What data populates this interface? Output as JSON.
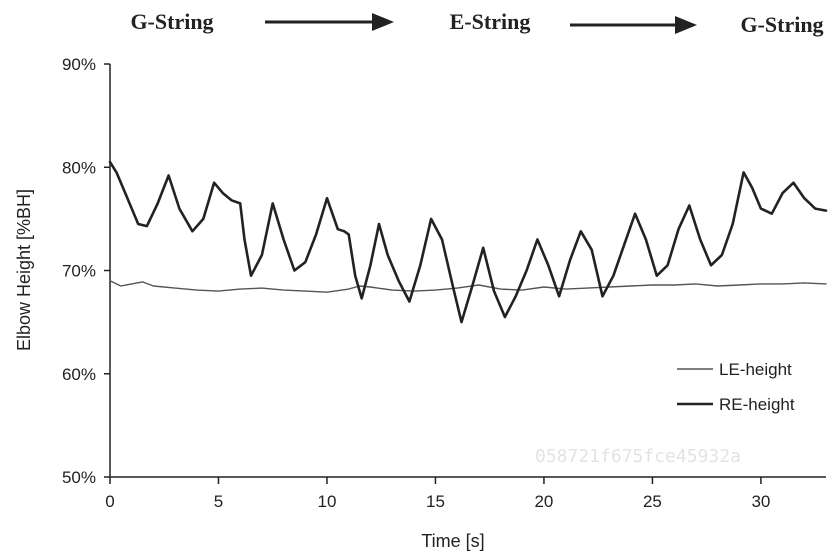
{
  "watermark": "058721f675fce45932a",
  "phases": [
    "G-String",
    "E-String",
    "G-String"
  ],
  "chart_data": {
    "type": "line",
    "xlabel": "Time [s]",
    "ylabel": "Elbow Height [%BH]",
    "xlim": [
      0,
      33
    ],
    "ylim": [
      50,
      90
    ],
    "xticks": [
      0,
      5,
      10,
      15,
      20,
      25,
      30
    ],
    "yticks": [
      50,
      60,
      70,
      80,
      90
    ],
    "ytick_labels": [
      "50%",
      "60%",
      "70%",
      "80%",
      "90%"
    ],
    "legend_position": "bottom-right",
    "grid": false,
    "series": [
      {
        "name": "LE-height",
        "color": "#555555",
        "x": [
          0,
          0.5,
          1,
          1.5,
          2,
          3,
          4,
          5,
          6,
          7,
          8,
          9,
          10,
          11,
          11.5,
          12,
          13,
          14,
          15,
          16,
          17,
          18,
          19,
          20,
          21,
          22,
          23,
          24,
          25,
          26,
          27,
          28,
          29,
          30,
          31,
          32,
          33
        ],
        "y": [
          69.0,
          68.5,
          68.7,
          68.9,
          68.5,
          68.3,
          68.1,
          68.0,
          68.2,
          68.3,
          68.1,
          68.0,
          67.9,
          68.2,
          68.5,
          68.4,
          68.1,
          68.0,
          68.1,
          68.3,
          68.6,
          68.2,
          68.1,
          68.4,
          68.2,
          68.3,
          68.4,
          68.5,
          68.6,
          68.6,
          68.7,
          68.5,
          68.6,
          68.7,
          68.7,
          68.8,
          68.7
        ]
      },
      {
        "name": "RE-height",
        "color": "#222222",
        "x": [
          0,
          0.3,
          0.8,
          1.3,
          1.7,
          2.2,
          2.7,
          3.2,
          3.8,
          4.3,
          4.8,
          5.2,
          5.6,
          6.0,
          6.2,
          6.5,
          7.0,
          7.5,
          8.0,
          8.5,
          9.0,
          9.5,
          10.0,
          10.5,
          10.8,
          11.0,
          11.3,
          11.6,
          12.0,
          12.4,
          12.8,
          13.3,
          13.8,
          14.3,
          14.8,
          15.3,
          15.8,
          16.2,
          16.7,
          17.2,
          17.7,
          18.2,
          18.7,
          19.2,
          19.7,
          20.2,
          20.7,
          21.2,
          21.7,
          22.2,
          22.7,
          23.2,
          23.7,
          24.2,
          24.7,
          25.2,
          25.7,
          26.2,
          26.7,
          27.2,
          27.7,
          28.2,
          28.7,
          29.2,
          29.6,
          30.0,
          30.5,
          31.0,
          31.5,
          32.0,
          32.5,
          33.0
        ],
        "y": [
          80.5,
          79.5,
          77.0,
          74.5,
          74.3,
          76.5,
          79.2,
          76.0,
          73.8,
          75.0,
          78.5,
          77.5,
          76.8,
          76.5,
          73.0,
          69.5,
          71.5,
          76.5,
          73.0,
          70.0,
          70.8,
          73.5,
          77.0,
          74.0,
          73.8,
          73.5,
          69.5,
          67.3,
          70.5,
          74.5,
          71.5,
          69.0,
          67.0,
          70.5,
          75.0,
          73.0,
          68.5,
          65.0,
          68.5,
          72.2,
          68.0,
          65.5,
          67.5,
          70.0,
          73.0,
          70.5,
          67.5,
          71.0,
          73.8,
          72.0,
          67.5,
          69.5,
          72.5,
          75.5,
          73.0,
          69.5,
          70.5,
          74.0,
          76.3,
          73.0,
          70.5,
          71.5,
          74.5,
          79.5,
          78.0,
          76.0,
          75.5,
          77.5,
          78.5,
          77.0,
          76.0,
          75.8
        ]
      }
    ]
  }
}
